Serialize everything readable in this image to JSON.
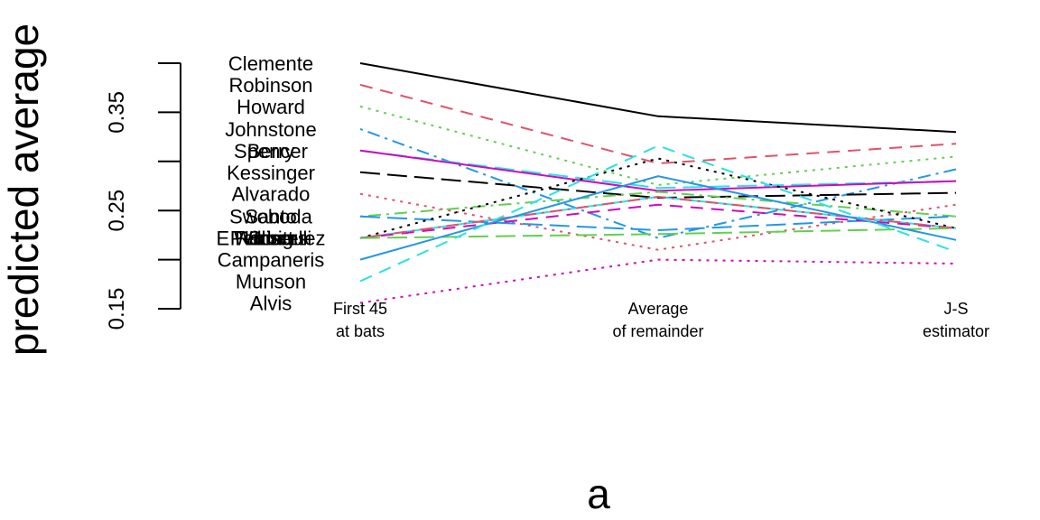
{
  "chart_data": {
    "type": "line",
    "title": "",
    "xlabel": "a",
    "ylabel": "predicted average",
    "categories": [
      "First 45\nat bats",
      "Average\nof remainder",
      "J-S\nestimator"
    ],
    "ylim": [
      0.15,
      0.4
    ],
    "yticks": [
      "0.15",
      "0.25",
      "0.35"
    ],
    "grid": false,
    "series": [
      {
        "name": "Clemente",
        "values": [
          0.4,
          0.346,
          0.33
        ],
        "color": "#000000",
        "dash": "solid"
      },
      {
        "name": "Robinson",
        "values": [
          0.378,
          0.298,
          0.318
        ],
        "color": "#DF536B",
        "dash": "dashed"
      },
      {
        "name": "Howard",
        "values": [
          0.356,
          0.276,
          0.305
        ],
        "color": "#61D04F",
        "dash": "dotted"
      },
      {
        "name": "Johnstone",
        "values": [
          0.333,
          0.222,
          0.292
        ],
        "color": "#2297E6",
        "dash": "dotdash"
      },
      {
        "name": "Berry",
        "values": [
          0.311,
          0.273,
          0.28
        ],
        "color": "#28E2E5",
        "dash": "longdash"
      },
      {
        "name": "Spencer",
        "values": [
          0.311,
          0.27,
          0.28
        ],
        "color": "#CD0BBC",
        "dash": "solid"
      },
      {
        "name": "Kessinger",
        "values": [
          0.289,
          0.263,
          0.268
        ],
        "color": "#000000",
        "dash": "longdash"
      },
      {
        "name": "Alvarado",
        "values": [
          0.267,
          0.21,
          0.256
        ],
        "color": "#DF536B",
        "dash": "dotted"
      },
      {
        "name": "Santo",
        "values": [
          0.244,
          0.269,
          0.244
        ],
        "color": "#61D04F",
        "dash": "dotdash"
      },
      {
        "name": "Swoboda",
        "values": [
          0.244,
          0.23,
          0.244
        ],
        "color": "#2297E6",
        "dash": "longdash"
      },
      {
        "name": "Unser",
        "values": [
          0.222,
          0.264,
          0.232
        ],
        "color": "#28E2E5",
        "dash": "solid"
      },
      {
        "name": "Williams",
        "values": [
          0.222,
          0.256,
          0.232
        ],
        "color": "#CD0BBC",
        "dash": "dashed"
      },
      {
        "name": "Scott",
        "values": [
          0.222,
          0.303,
          0.232
        ],
        "color": "#000000",
        "dash": "dotted"
      },
      {
        "name": "Petrocelli",
        "values": [
          0.222,
          0.264,
          0.232
        ],
        "color": "#DF536B",
        "dash": "dotdash"
      },
      {
        "name": "E Rodriguez",
        "values": [
          0.222,
          0.226,
          0.232
        ],
        "color": "#61D04F",
        "dash": "longdash"
      },
      {
        "name": "Campaneris",
        "values": [
          0.2,
          0.285,
          0.22
        ],
        "color": "#2297E6",
        "dash": "solid"
      },
      {
        "name": "Munson",
        "values": [
          0.178,
          0.316,
          0.208
        ],
        "color": "#28E2E5",
        "dash": "dashed"
      },
      {
        "name": "Alvis",
        "values": [
          0.156,
          0.2,
          0.196
        ],
        "color": "#CD0BBC",
        "dash": "dotted"
      }
    ]
  }
}
